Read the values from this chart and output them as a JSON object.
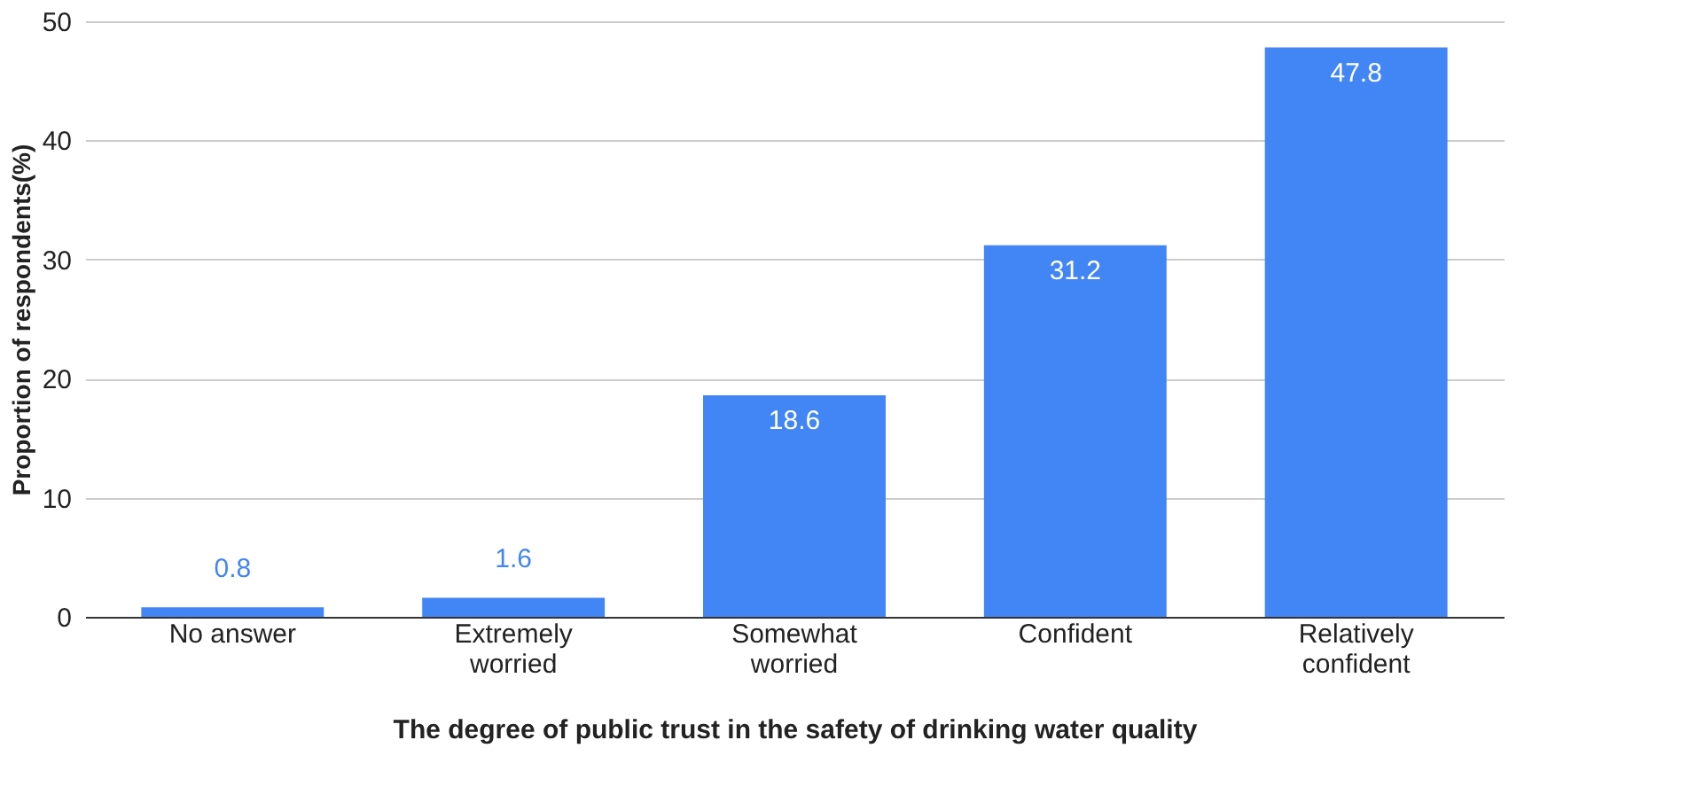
{
  "chart_data": {
    "type": "bar",
    "xlabel": "The degree of public trust in the safety of drinking water quality",
    "ylabel": "Proportion of respondents(%)",
    "categories": [
      "No answer",
      "Extremely worried",
      "Somewhat worried",
      "Confident",
      "Relatively confident"
    ],
    "values": [
      0.8,
      1.6,
      18.6,
      31.2,
      47.8
    ],
    "color": "#4285f4",
    "ylim": [
      0,
      50
    ],
    "yticks": [
      0,
      10,
      20,
      30,
      40,
      50
    ],
    "grid": "y",
    "data_labels": true
  }
}
